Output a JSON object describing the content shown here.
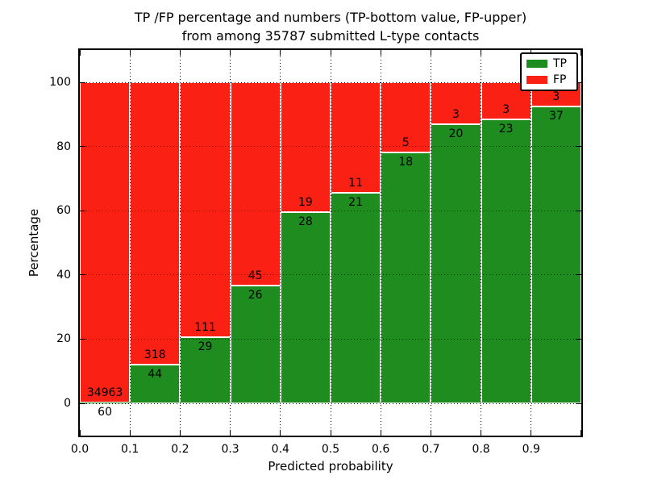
{
  "title": {
    "line1": "TP /FP percentage and numbers (TP-bottom value, FP-upper)",
    "line2": "from among 35787 submitted L-type contacts"
  },
  "axes": {
    "xlabel": "Predicted probability",
    "ylabel": "Percentage",
    "x_ticks": [
      "0.0",
      "0.1",
      "0.2",
      "0.3",
      "0.4",
      "0.5",
      "0.6",
      "0.7",
      "0.8",
      "0.9"
    ],
    "y_ticks": [
      "0",
      "20",
      "40",
      "60",
      "80",
      "100"
    ],
    "xlim": [
      0.0,
      1.0
    ],
    "ylim": [
      -10,
      110
    ],
    "grid": "dotted"
  },
  "legend": {
    "position": "upper right",
    "items": [
      {
        "label": "TP",
        "color": "#1e8c1e"
      },
      {
        "label": "FP",
        "color": "#fa2014"
      }
    ]
  },
  "chart_data": {
    "type": "bar",
    "stacked": true,
    "normalized_to_percent": true,
    "title": "TP /FP percentage and numbers (TP-bottom value, FP-upper) from among 35787 submitted L-type contacts",
    "xlabel": "Predicted probability",
    "ylabel": "Percentage",
    "total_contacts": 35787,
    "categories": [
      "0.0-0.1",
      "0.1-0.2",
      "0.2-0.3",
      "0.3-0.4",
      "0.4-0.5",
      "0.5-0.6",
      "0.6-0.7",
      "0.7-0.8",
      "0.8-0.9",
      "0.9-1.0"
    ],
    "series": [
      {
        "name": "TP",
        "color": "#1e8c1e",
        "counts": [
          60,
          44,
          29,
          26,
          28,
          21,
          18,
          20,
          23,
          37
        ]
      },
      {
        "name": "FP",
        "color": "#fa2014",
        "counts": [
          34963,
          318,
          111,
          45,
          19,
          11,
          5,
          3,
          3,
          3
        ]
      }
    ],
    "tp_percent": [
      0.17,
      12.15,
      20.71,
      36.62,
      59.57,
      65.63,
      78.26,
      86.96,
      88.46,
      92.5
    ],
    "legend_position": "upper right"
  }
}
